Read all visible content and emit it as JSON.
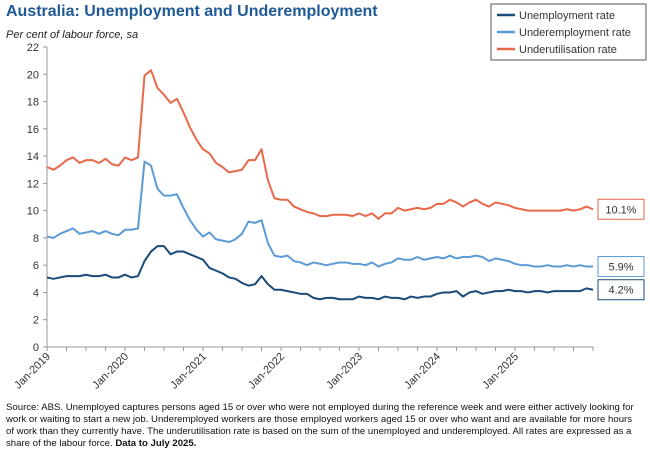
{
  "header": {
    "title": "Australia: Unemployment and Underemployment",
    "subtitle": "Per cent of labour force, sa"
  },
  "source": {
    "text": "Source: ABS. Unemployed captures persons aged 15 or over who were not employed during the reference week and were either actively looking for work or waiting to start a new job.  Underemployed workers are those employed workers aged 15 or over who want and are available for more hours of work than they currently have.  The underutilisation rate is based on the sum of the unemployed and underemployed. All rates are expressed as a share of the labour force. ",
    "bold": "Data to July 2025."
  },
  "chart_data": {
    "type": "line",
    "title": "Australia: Unemployment and Underemployment",
    "ylabel": "Per cent of labour force, sa",
    "ylim": [
      0,
      22
    ],
    "yticks": [
      0,
      2,
      4,
      6,
      8,
      10,
      12,
      14,
      16,
      18,
      20,
      22
    ],
    "x_start": "Jan-2019",
    "x_end": "Jul-2025",
    "xtick_labels": [
      "Jan-2019",
      "Jan-2020",
      "Jan-2021",
      "Jan-2022",
      "Jan-2023",
      "Jan-2024",
      "Jan-2025"
    ],
    "legend_position": "top-right",
    "series": [
      {
        "name": "Unemployment rate",
        "color": "#1a4a7a",
        "end_label": "4.2%",
        "values": [
          5.1,
          5.0,
          5.1,
          5.2,
          5.2,
          5.2,
          5.3,
          5.2,
          5.2,
          5.3,
          5.1,
          5.1,
          5.3,
          5.1,
          5.2,
          6.3,
          7.0,
          7.4,
          7.4,
          6.8,
          7.0,
          7.0,
          6.8,
          6.6,
          6.4,
          5.8,
          5.6,
          5.4,
          5.1,
          5.0,
          4.7,
          4.5,
          4.6,
          5.2,
          4.6,
          4.2,
          4.2,
          4.1,
          4.0,
          3.9,
          3.9,
          3.6,
          3.5,
          3.6,
          3.6,
          3.5,
          3.5,
          3.5,
          3.7,
          3.6,
          3.6,
          3.5,
          3.7,
          3.6,
          3.6,
          3.5,
          3.7,
          3.6,
          3.7,
          3.7,
          3.9,
          4.0,
          4.0,
          4.1,
          3.7,
          4.0,
          4.1,
          3.9,
          4.0,
          4.1,
          4.1,
          4.2,
          4.1,
          4.1,
          4.0,
          4.1,
          4.1,
          4.0,
          4.1,
          4.1,
          4.1,
          4.1,
          4.1,
          4.3,
          4.2
        ]
      },
      {
        "name": "Underemployment rate",
        "color": "#5b9bd5",
        "end_label": "5.9%",
        "values": [
          8.1,
          8.0,
          8.3,
          8.5,
          8.7,
          8.3,
          8.4,
          8.5,
          8.3,
          8.5,
          8.3,
          8.2,
          8.6,
          8.6,
          8.7,
          13.6,
          13.3,
          11.6,
          11.1,
          11.1,
          11.2,
          10.2,
          9.3,
          8.6,
          8.1,
          8.4,
          7.9,
          7.8,
          7.7,
          7.9,
          8.3,
          9.2,
          9.1,
          9.3,
          7.6,
          6.7,
          6.6,
          6.7,
          6.3,
          6.2,
          6.0,
          6.2,
          6.1,
          6.0,
          6.1,
          6.2,
          6.2,
          6.1,
          6.1,
          6.0,
          6.2,
          5.9,
          6.1,
          6.2,
          6.5,
          6.4,
          6.4,
          6.6,
          6.4,
          6.5,
          6.6,
          6.5,
          6.7,
          6.5,
          6.6,
          6.6,
          6.7,
          6.6,
          6.3,
          6.5,
          6.4,
          6.3,
          6.1,
          6.0,
          6.0,
          5.9,
          5.9,
          6.0,
          5.9,
          5.9,
          6.0,
          5.9,
          6.0,
          5.9,
          5.9
        ]
      },
      {
        "name": "Underutilisation rate",
        "color": "#e8684a",
        "end_label": "10.1%",
        "values": [
          13.2,
          13.0,
          13.3,
          13.7,
          13.9,
          13.5,
          13.7,
          13.7,
          13.5,
          13.8,
          13.4,
          13.3,
          13.9,
          13.7,
          13.9,
          19.9,
          20.3,
          19.0,
          18.5,
          17.9,
          18.2,
          17.2,
          16.1,
          15.2,
          14.5,
          14.2,
          13.5,
          13.2,
          12.8,
          12.9,
          13.0,
          13.7,
          13.7,
          14.5,
          12.2,
          10.9,
          10.8,
          10.8,
          10.3,
          10.1,
          9.9,
          9.8,
          9.6,
          9.6,
          9.7,
          9.7,
          9.7,
          9.6,
          9.8,
          9.6,
          9.8,
          9.4,
          9.8,
          9.8,
          10.2,
          10.0,
          10.1,
          10.2,
          10.1,
          10.2,
          10.5,
          10.5,
          10.8,
          10.6,
          10.3,
          10.6,
          10.8,
          10.5,
          10.3,
          10.6,
          10.5,
          10.4,
          10.2,
          10.1,
          10.0,
          10.0,
          10.0,
          10.0,
          10.0,
          10.0,
          10.1,
          10.0,
          10.1,
          10.3,
          10.1
        ]
      }
    ]
  }
}
